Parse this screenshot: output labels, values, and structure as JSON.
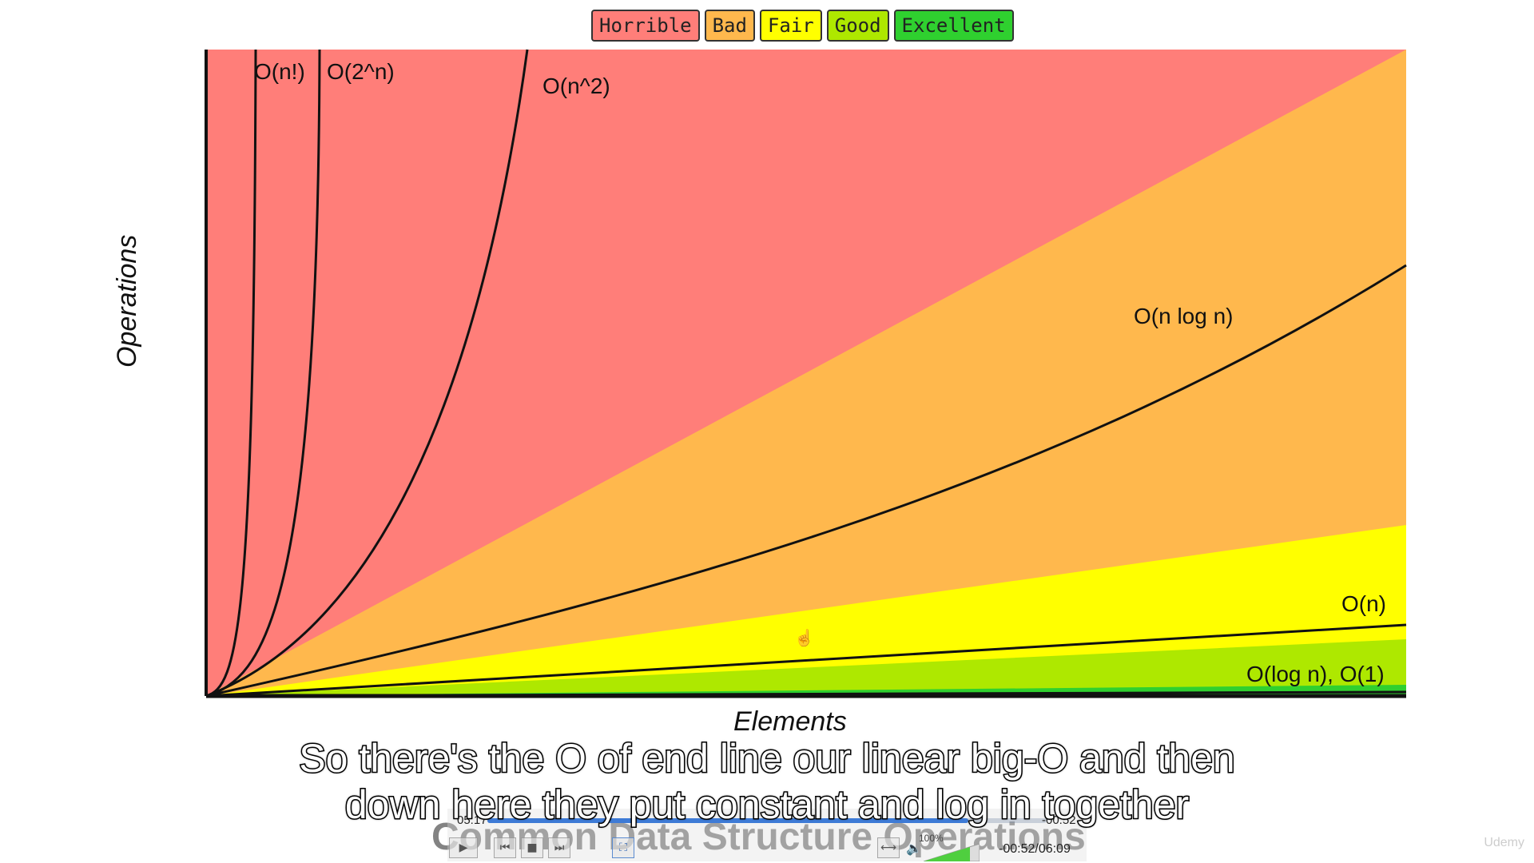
{
  "legend": {
    "items": [
      {
        "label": "Horrible",
        "color": "#ff7e79"
      },
      {
        "label": "Bad",
        "color": "#ffb84d"
      },
      {
        "label": "Fair",
        "color": "#ffff00"
      },
      {
        "label": "Good",
        "color": "#aee800"
      },
      {
        "label": "Excellent",
        "color": "#2fd02f"
      }
    ]
  },
  "chart_data": {
    "type": "line",
    "title": "",
    "xlabel": "Elements",
    "ylabel": "Operations",
    "xlim": [
      0,
      100
    ],
    "ylim": [
      0,
      100
    ],
    "regions": [
      {
        "name": "Horrible",
        "color": "#ff7e79"
      },
      {
        "name": "Bad",
        "color": "#ffb84d"
      },
      {
        "name": "Fair",
        "color": "#ffff00"
      },
      {
        "name": "Good",
        "color": "#aee800"
      },
      {
        "name": "Excellent",
        "color": "#2fd02f"
      }
    ],
    "series": [
      {
        "name": "O(n!)",
        "label": "O(n!)"
      },
      {
        "name": "O(2^n)",
        "label": "O(2^n)"
      },
      {
        "name": "O(n^2)",
        "label": "O(n^2)"
      },
      {
        "name": "O(n log n)",
        "label": "O(n log n)"
      },
      {
        "name": "O(n)",
        "label": "O(n)"
      },
      {
        "name": "O(log n), O(1)",
        "label": "O(log n), O(1)"
      }
    ]
  },
  "subtitles": {
    "line1": "So there's the O of end line our linear big-O and then",
    "line2": "down here they put constant and log in together"
  },
  "background_title": "Common Data Structure Operations",
  "player": {
    "elapsed": "05:17",
    "remaining": "-00:52",
    "time_full": "-00:52/06:09",
    "volume": "100%",
    "progress": 0.86,
    "volume_level": 1.0,
    "accent_color": "#3e7bd6",
    "buttons": {
      "play": "▶",
      "prev": "⏮",
      "stop": "■",
      "next": "⏭",
      "fullscreen": "⛶",
      "aspect": "⟷"
    }
  },
  "watermark": "Udemy"
}
